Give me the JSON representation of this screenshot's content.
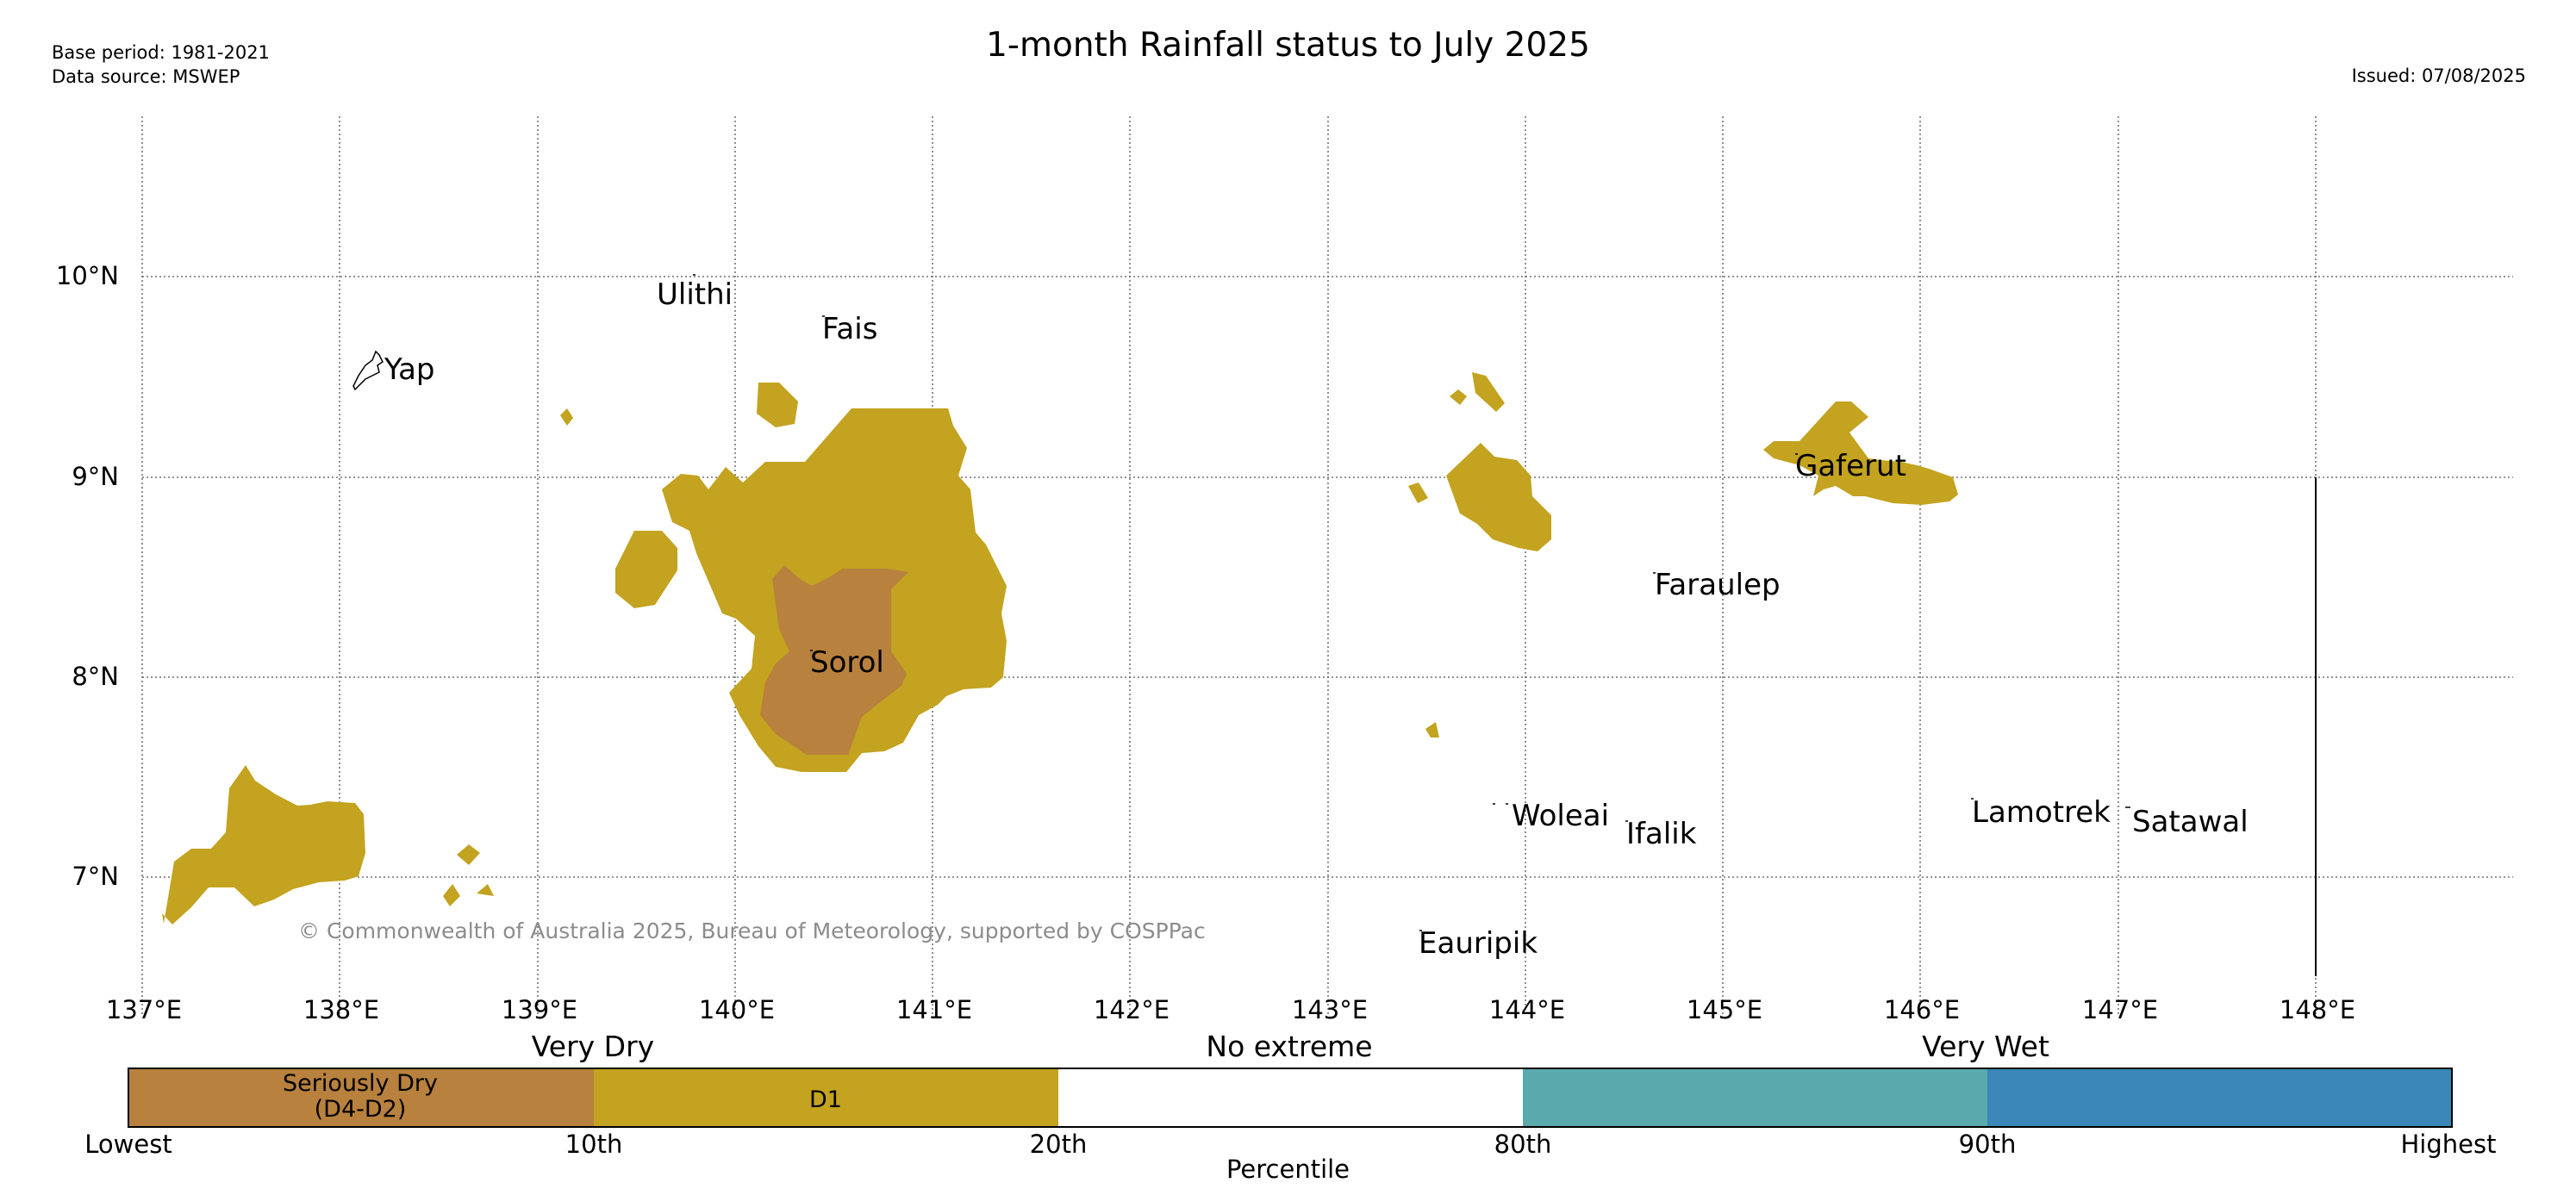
{
  "header": {
    "title": "1-month Rainfall status to July 2025",
    "base_period": "Base period: 1981-2021",
    "data_source": "Data source: MSWEP",
    "issued": "Issued: 07/08/2025"
  },
  "map": {
    "lon_ticks": [
      "137°E",
      "138°E",
      "139°E",
      "140°E",
      "141°E",
      "142°E",
      "143°E",
      "144°E",
      "145°E",
      "146°E",
      "147°E",
      "148°E"
    ],
    "lat_ticks": [
      "10°N",
      "9°N",
      "8°N",
      "7°N"
    ],
    "places": [
      "Yap",
      "Ulithi",
      "Fais",
      "Sorol",
      "Gaferut",
      "Faraulep",
      "Woleai",
      "Ifalik",
      "Lamotrek",
      "Satawal",
      "Eauripik"
    ],
    "copyright": "© Commonwealth of Australia 2025, Bureau of Meteorology, supported by COSPPac",
    "colors": {
      "seriously_dry": "#b8813d",
      "d1": "#c3a31f",
      "no_extreme": "#ffffff",
      "wet": "#5aa9ad",
      "very_wet": "#3a87b8"
    }
  },
  "legend": {
    "category_headers": [
      "Very Dry",
      "No extreme",
      "Very Wet"
    ],
    "segments": [
      "Seriously Dry",
      "(D4-D2)",
      "D1"
    ],
    "percentiles": [
      "Lowest",
      "10th",
      "20th",
      "80th",
      "90th",
      "Highest"
    ],
    "axis_label": "Percentile"
  }
}
